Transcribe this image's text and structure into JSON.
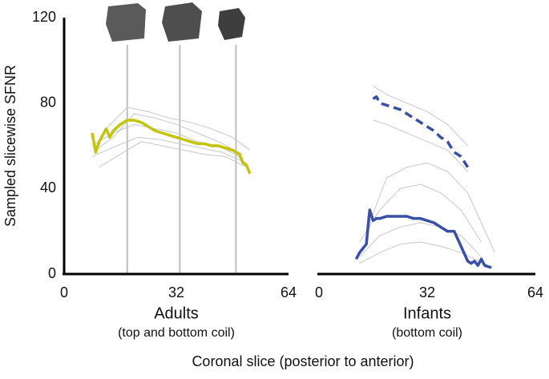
{
  "y_label": "Sampled slicewise SFNR",
  "x_label": "Coronal slice (posterior to anterior)",
  "chart_data": [
    {
      "type": "line",
      "title": "Adults",
      "subtitle": "(top and bottom coil)",
      "title_color": "#c4c40a",
      "xlim": [
        0,
        64
      ],
      "xticks": [
        0,
        32,
        64
      ],
      "ylim": [
        0,
        120
      ],
      "yticks": [
        0,
        40,
        80,
        120
      ],
      "markers": [
        18,
        33,
        49
      ],
      "series": [
        {
          "color": "#c8c8c8",
          "width": 1,
          "x": [
            8,
            14,
            20,
            26,
            32,
            38,
            44,
            50
          ],
          "values": [
            60,
            66,
            70,
            68,
            66,
            62,
            60,
            55
          ]
        },
        {
          "color": "#c8c8c8",
          "width": 1,
          "x": [
            9,
            14,
            20,
            26,
            32,
            38,
            44,
            51
          ],
          "values": [
            58,
            64,
            75,
            73,
            70,
            66,
            62,
            56
          ]
        },
        {
          "color": "#c8c8c8",
          "width": 1,
          "x": [
            10,
            16,
            22,
            28,
            34,
            40,
            46,
            52
          ],
          "values": [
            50,
            56,
            62,
            60,
            58,
            56,
            55,
            50
          ]
        },
        {
          "color": "#c8c8c8",
          "width": 1,
          "x": [
            12,
            18,
            24,
            30,
            36,
            42,
            48,
            53
          ],
          "values": [
            68,
            78,
            76,
            73,
            71,
            68,
            64,
            58
          ]
        },
        {
          "color": "#c8c8c8",
          "width": 1,
          "x": [
            8,
            15,
            21,
            27,
            33,
            39,
            45,
            52
          ],
          "values": [
            55,
            60,
            64,
            63,
            61,
            59,
            57,
            52
          ]
        },
        {
          "color": "#c4c40a",
          "width": 3.5,
          "x": [
            8,
            9,
            10,
            11,
            12,
            13,
            14,
            16,
            18,
            20,
            22,
            24,
            26,
            28,
            30,
            32,
            34,
            36,
            38,
            40,
            42,
            44,
            46,
            48,
            50,
            51,
            52,
            53
          ],
          "values": [
            66,
            57,
            62,
            65,
            68,
            64,
            67,
            70,
            72,
            72,
            71,
            69,
            67,
            66,
            65,
            64,
            63,
            62,
            61,
            61,
            60,
            60,
            59,
            58,
            56,
            52,
            51,
            47
          ]
        }
      ]
    },
    {
      "type": "line",
      "title": "Infants",
      "subtitle": "(bottom coil)",
      "title_color": "#3a4fa8",
      "xlim": [
        0,
        64
      ],
      "xticks": [
        0,
        32,
        64
      ],
      "ylim": [
        0,
        120
      ],
      "series": [
        {
          "color": "#c8c8c8",
          "width": 1,
          "x": [
            16,
            20,
            26,
            32,
            38,
            44
          ],
          "values": [
            88,
            84,
            80,
            76,
            70,
            60
          ]
        },
        {
          "color": "#c8c8c8",
          "width": 1,
          "x": [
            16,
            20,
            26,
            32,
            38,
            44
          ],
          "values": [
            72,
            70,
            66,
            62,
            58,
            48
          ]
        },
        {
          "color": "#c8c8c8",
          "width": 1,
          "x": [
            12,
            18,
            24,
            30,
            36,
            42,
            48
          ],
          "values": [
            15,
            30,
            40,
            42,
            38,
            30,
            15
          ]
        },
        {
          "color": "#c8c8c8",
          "width": 1,
          "x": [
            12,
            18,
            24,
            30,
            36,
            42,
            48
          ],
          "values": [
            8,
            18,
            22,
            24,
            22,
            18,
            8
          ]
        },
        {
          "color": "#c8c8c8",
          "width": 1,
          "x": [
            12,
            18,
            24,
            30,
            36,
            42,
            50
          ],
          "values": [
            5,
            10,
            14,
            15,
            13,
            10,
            4
          ]
        },
        {
          "color": "#c8c8c8",
          "width": 1,
          "x": [
            14,
            20,
            26,
            32,
            38,
            44,
            52
          ],
          "values": [
            20,
            45,
            50,
            52,
            48,
            38,
            10
          ]
        },
        {
          "color": "#3a4fa8",
          "width": 3.5,
          "dashed": true,
          "x": [
            16,
            17,
            18,
            20,
            22,
            24,
            26,
            28,
            30,
            32,
            34,
            36,
            38,
            40,
            41,
            42,
            44
          ],
          "values": [
            82,
            83,
            80,
            79,
            78,
            77,
            75,
            73,
            71,
            69,
            67,
            64,
            62,
            57,
            56,
            55,
            50
          ]
        },
        {
          "color": "#3a4fa8",
          "width": 3.5,
          "x": [
            11,
            12,
            13,
            14,
            15,
            16,
            17,
            18,
            20,
            22,
            24,
            26,
            28,
            30,
            32,
            34,
            36,
            38,
            40,
            42,
            44,
            45,
            46,
            47,
            48,
            49,
            51
          ],
          "values": [
            7,
            10,
            12,
            14,
            30,
            25,
            26,
            26,
            27,
            27,
            27,
            27,
            26,
            26,
            25,
            24,
            22,
            20,
            20,
            13,
            6,
            5,
            6,
            4,
            7,
            4,
            3
          ]
        }
      ]
    }
  ]
}
